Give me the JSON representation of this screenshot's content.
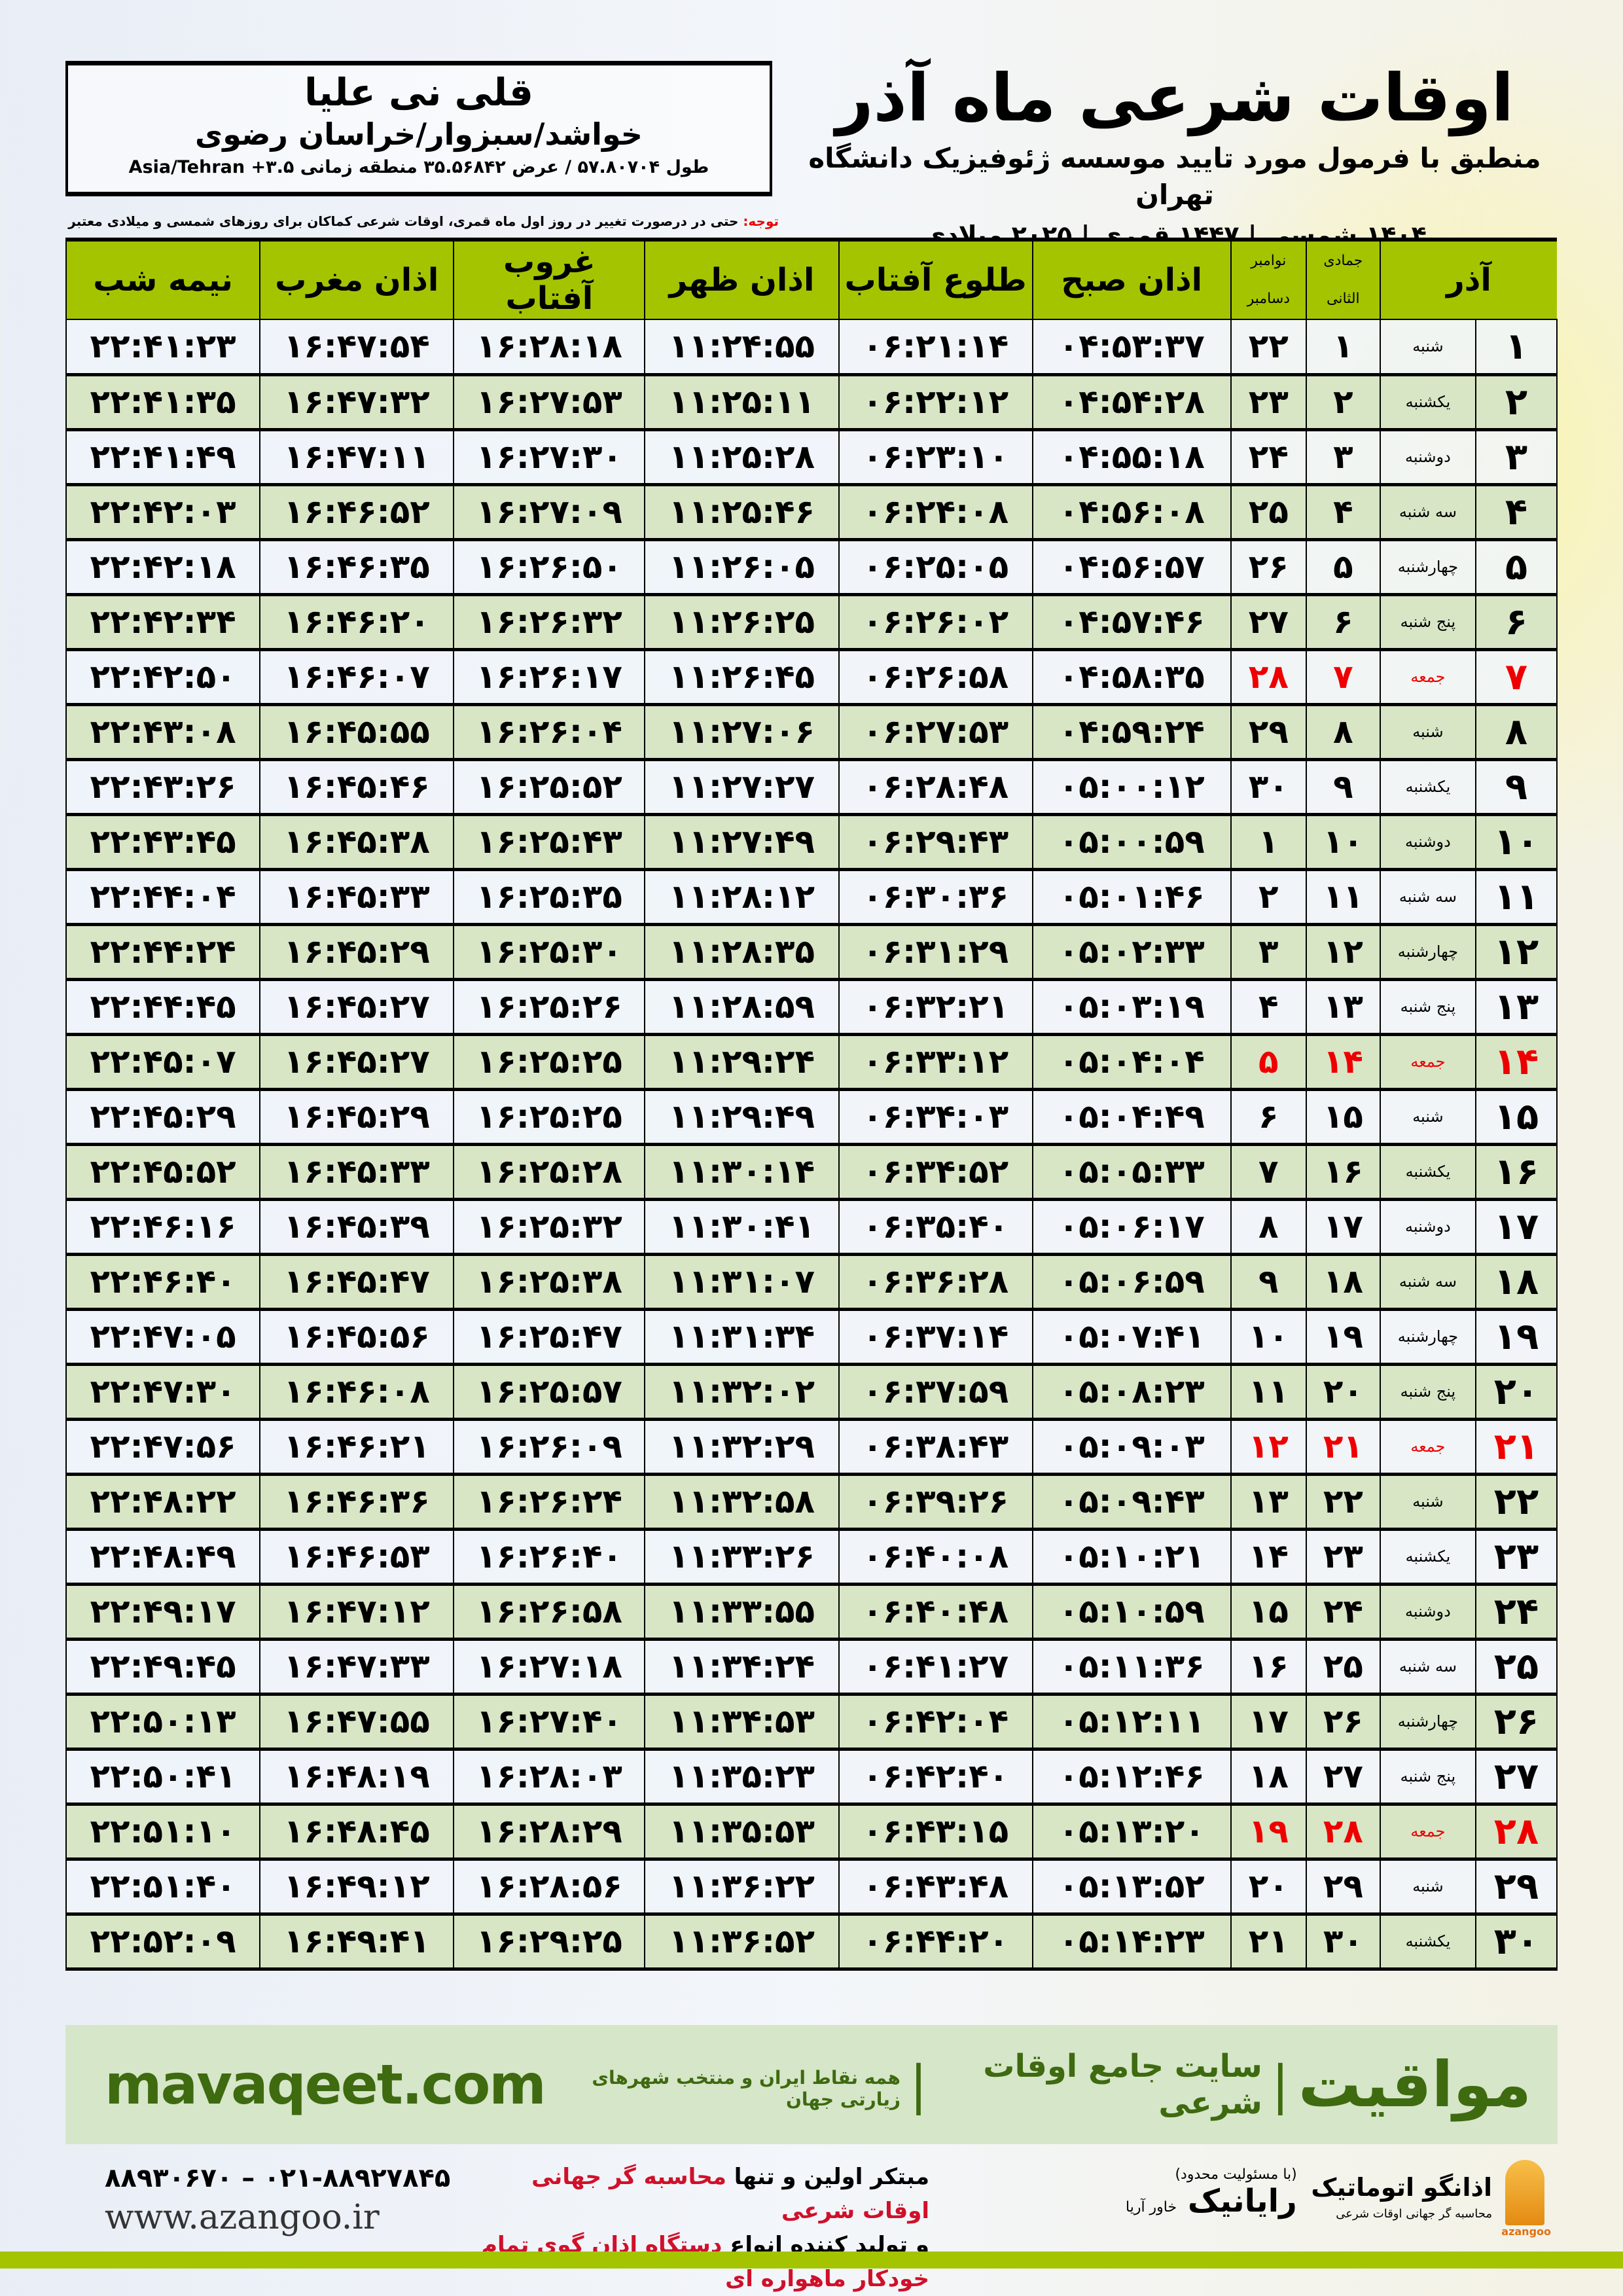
{
  "location": {
    "city": "قلی نی علیا",
    "region": "خواشد/سبزوار/خراسان رضوی",
    "coords": "طول ۵۷.۸۰۷۰۴ / عرض ۳۵.۵۶۸۴۲ منطقه زمانی ۳.۵+ Asia/Tehran"
  },
  "title": {
    "main": "اوقات شرعی ماه آذر",
    "subtitle": "منطبق با فرمول مورد تایید موسسه ژئوفیزیک دانشگاه تهران",
    "years": "۱۴۰۴ شمسی | ۱۴۴۷ قمری | ۲۰۲۵ میلادی"
  },
  "note": {
    "label": "توجه:",
    "text": " حتی در درصورت تغییر در روز اول ماه قمری، اوقات شرعی کماکان برای روزهای شمسی و میلادی معتبر است."
  },
  "colors": {
    "header": "#a5c400",
    "row_alt": "#d8e6c6",
    "friday": "#e00000",
    "brand": "#3e6a10"
  },
  "table": {
    "headers": {
      "month": "آذر",
      "hijri": "جمادی الثانی",
      "greg_top": "نوامبر",
      "greg_bottom": "دسامبر",
      "sobh": "اذان صبح",
      "tolu": "طلوع آفتاب",
      "zohr": "اذان ظهر",
      "ghorub": "غروب آفتاب",
      "maghrib": "اذان مغرب",
      "nimeh": "نیمه شب"
    },
    "rows": [
      [
        "۱",
        "شنبه",
        "۱",
        "۲۲",
        "۰۴:۵۳:۳۷",
        "۰۶:۲۱:۱۴",
        "۱۱:۲۴:۵۵",
        "۱۶:۲۸:۱۸",
        "۱۶:۴۷:۵۴",
        "۲۲:۴۱:۲۳"
      ],
      [
        "۲",
        "یکشنبه",
        "۲",
        "۲۳",
        "۰۴:۵۴:۲۸",
        "۰۶:۲۲:۱۲",
        "۱۱:۲۵:۱۱",
        "۱۶:۲۷:۵۳",
        "۱۶:۴۷:۳۲",
        "۲۲:۴۱:۳۵"
      ],
      [
        "۳",
        "دوشنبه",
        "۳",
        "۲۴",
        "۰۴:۵۵:۱۸",
        "۰۶:۲۳:۱۰",
        "۱۱:۲۵:۲۸",
        "۱۶:۲۷:۳۰",
        "۱۶:۴۷:۱۱",
        "۲۲:۴۱:۴۹"
      ],
      [
        "۴",
        "سه شنبه",
        "۴",
        "۲۵",
        "۰۴:۵۶:۰۸",
        "۰۶:۲۴:۰۸",
        "۱۱:۲۵:۴۶",
        "۱۶:۲۷:۰۹",
        "۱۶:۴۶:۵۲",
        "۲۲:۴۲:۰۳"
      ],
      [
        "۵",
        "چهارشنبه",
        "۵",
        "۲۶",
        "۰۴:۵۶:۵۷",
        "۰۶:۲۵:۰۵",
        "۱۱:۲۶:۰۵",
        "۱۶:۲۶:۵۰",
        "۱۶:۴۶:۳۵",
        "۲۲:۴۲:۱۸"
      ],
      [
        "۶",
        "پنج شنبه",
        "۶",
        "۲۷",
        "۰۴:۵۷:۴۶",
        "۰۶:۲۶:۰۲",
        "۱۱:۲۶:۲۵",
        "۱۶:۲۶:۳۲",
        "۱۶:۴۶:۲۰",
        "۲۲:۴۲:۳۴"
      ],
      [
        "۷",
        "جمعه",
        "۷",
        "۲۸",
        "۰۴:۵۸:۳۵",
        "۰۶:۲۶:۵۸",
        "۱۱:۲۶:۴۵",
        "۱۶:۲۶:۱۷",
        "۱۶:۴۶:۰۷",
        "۲۲:۴۲:۵۰"
      ],
      [
        "۸",
        "شنبه",
        "۸",
        "۲۹",
        "۰۴:۵۹:۲۴",
        "۰۶:۲۷:۵۳",
        "۱۱:۲۷:۰۶",
        "۱۶:۲۶:۰۴",
        "۱۶:۴۵:۵۵",
        "۲۲:۴۳:۰۸"
      ],
      [
        "۹",
        "یکشنبه",
        "۹",
        "۳۰",
        "۰۵:۰۰:۱۲",
        "۰۶:۲۸:۴۸",
        "۱۱:۲۷:۲۷",
        "۱۶:۲۵:۵۲",
        "۱۶:۴۵:۴۶",
        "۲۲:۴۳:۲۶"
      ],
      [
        "۱۰",
        "دوشنبه",
        "۱۰",
        "۱",
        "۰۵:۰۰:۵۹",
        "۰۶:۲۹:۴۳",
        "۱۱:۲۷:۴۹",
        "۱۶:۲۵:۴۳",
        "۱۶:۴۵:۳۸",
        "۲۲:۴۳:۴۵"
      ],
      [
        "۱۱",
        "سه شنبه",
        "۱۱",
        "۲",
        "۰۵:۰۱:۴۶",
        "۰۶:۳۰:۳۶",
        "۱۱:۲۸:۱۲",
        "۱۶:۲۵:۳۵",
        "۱۶:۴۵:۳۳",
        "۲۲:۴۴:۰۴"
      ],
      [
        "۱۲",
        "چهارشنبه",
        "۱۲",
        "۳",
        "۰۵:۰۲:۳۳",
        "۰۶:۳۱:۲۹",
        "۱۱:۲۸:۳۵",
        "۱۶:۲۵:۳۰",
        "۱۶:۴۵:۲۹",
        "۲۲:۴۴:۲۴"
      ],
      [
        "۱۳",
        "پنج شنبه",
        "۱۳",
        "۴",
        "۰۵:۰۳:۱۹",
        "۰۶:۳۲:۲۱",
        "۱۱:۲۸:۵۹",
        "۱۶:۲۵:۲۶",
        "۱۶:۴۵:۲۷",
        "۲۲:۴۴:۴۵"
      ],
      [
        "۱۴",
        "جمعه",
        "۱۴",
        "۵",
        "۰۵:۰۴:۰۴",
        "۰۶:۳۳:۱۲",
        "۱۱:۲۹:۲۴",
        "۱۶:۲۵:۲۵",
        "۱۶:۴۵:۲۷",
        "۲۲:۴۵:۰۷"
      ],
      [
        "۱۵",
        "شنبه",
        "۱۵",
        "۶",
        "۰۵:۰۴:۴۹",
        "۰۶:۳۴:۰۳",
        "۱۱:۲۹:۴۹",
        "۱۶:۲۵:۲۵",
        "۱۶:۴۵:۲۹",
        "۲۲:۴۵:۲۹"
      ],
      [
        "۱۶",
        "یکشنبه",
        "۱۶",
        "۷",
        "۰۵:۰۵:۳۳",
        "۰۶:۳۴:۵۲",
        "۱۱:۳۰:۱۴",
        "۱۶:۲۵:۲۸",
        "۱۶:۴۵:۳۳",
        "۲۲:۴۵:۵۲"
      ],
      [
        "۱۷",
        "دوشنبه",
        "۱۷",
        "۸",
        "۰۵:۰۶:۱۷",
        "۰۶:۳۵:۴۰",
        "۱۱:۳۰:۴۱",
        "۱۶:۲۵:۳۲",
        "۱۶:۴۵:۳۹",
        "۲۲:۴۶:۱۶"
      ],
      [
        "۱۸",
        "سه شنبه",
        "۱۸",
        "۹",
        "۰۵:۰۶:۵۹",
        "۰۶:۳۶:۲۸",
        "۱۱:۳۱:۰۷",
        "۱۶:۲۵:۳۸",
        "۱۶:۴۵:۴۷",
        "۲۲:۴۶:۴۰"
      ],
      [
        "۱۹",
        "چهارشنبه",
        "۱۹",
        "۱۰",
        "۰۵:۰۷:۴۱",
        "۰۶:۳۷:۱۴",
        "۱۱:۳۱:۳۴",
        "۱۶:۲۵:۴۷",
        "۱۶:۴۵:۵۶",
        "۲۲:۴۷:۰۵"
      ],
      [
        "۲۰",
        "پنج شنبه",
        "۲۰",
        "۱۱",
        "۰۵:۰۸:۲۳",
        "۰۶:۳۷:۵۹",
        "۱۱:۳۲:۰۲",
        "۱۶:۲۵:۵۷",
        "۱۶:۴۶:۰۸",
        "۲۲:۴۷:۳۰"
      ],
      [
        "۲۱",
        "جمعه",
        "۲۱",
        "۱۲",
        "۰۵:۰۹:۰۳",
        "۰۶:۳۸:۴۳",
        "۱۱:۳۲:۲۹",
        "۱۶:۲۶:۰۹",
        "۱۶:۴۶:۲۱",
        "۲۲:۴۷:۵۶"
      ],
      [
        "۲۲",
        "شنبه",
        "۲۲",
        "۱۳",
        "۰۵:۰۹:۴۳",
        "۰۶:۳۹:۲۶",
        "۱۱:۳۲:۵۸",
        "۱۶:۲۶:۲۴",
        "۱۶:۴۶:۳۶",
        "۲۲:۴۸:۲۲"
      ],
      [
        "۲۳",
        "یکشنبه",
        "۲۳",
        "۱۴",
        "۰۵:۱۰:۲۱",
        "۰۶:۴۰:۰۸",
        "۱۱:۳۳:۲۶",
        "۱۶:۲۶:۴۰",
        "۱۶:۴۶:۵۳",
        "۲۲:۴۸:۴۹"
      ],
      [
        "۲۴",
        "دوشنبه",
        "۲۴",
        "۱۵",
        "۰۵:۱۰:۵۹",
        "۰۶:۴۰:۴۸",
        "۱۱:۳۳:۵۵",
        "۱۶:۲۶:۵۸",
        "۱۶:۴۷:۱۲",
        "۲۲:۴۹:۱۷"
      ],
      [
        "۲۵",
        "سه شنبه",
        "۲۵",
        "۱۶",
        "۰۵:۱۱:۳۶",
        "۰۶:۴۱:۲۷",
        "۱۱:۳۴:۲۴",
        "۱۶:۲۷:۱۸",
        "۱۶:۴۷:۳۳",
        "۲۲:۴۹:۴۵"
      ],
      [
        "۲۶",
        "چهارشنبه",
        "۲۶",
        "۱۷",
        "۰۵:۱۲:۱۱",
        "۰۶:۴۲:۰۴",
        "۱۱:۳۴:۵۳",
        "۱۶:۲۷:۴۰",
        "۱۶:۴۷:۵۵",
        "۲۲:۵۰:۱۳"
      ],
      [
        "۲۷",
        "پنج شنبه",
        "۲۷",
        "۱۸",
        "۰۵:۱۲:۴۶",
        "۰۶:۴۲:۴۰",
        "۱۱:۳۵:۲۳",
        "۱۶:۲۸:۰۳",
        "۱۶:۴۸:۱۹",
        "۲۲:۵۰:۴۱"
      ],
      [
        "۲۸",
        "جمعه",
        "۲۸",
        "۱۹",
        "۰۵:۱۳:۲۰",
        "۰۶:۴۳:۱۵",
        "۱۱:۳۵:۵۳",
        "۱۶:۲۸:۲۹",
        "۱۶:۴۸:۴۵",
        "۲۲:۵۱:۱۰"
      ],
      [
        "۲۹",
        "شنبه",
        "۲۹",
        "۲۰",
        "۰۵:۱۳:۵۲",
        "۰۶:۴۳:۴۸",
        "۱۱:۳۶:۲۲",
        "۱۶:۲۸:۵۶",
        "۱۶:۴۹:۱۲",
        "۲۲:۵۱:۴۰"
      ],
      [
        "۳۰",
        "یکشنبه",
        "۳۰",
        "۲۱",
        "۰۵:۱۴:۲۳",
        "۰۶:۴۴:۲۰",
        "۱۱:۳۶:۵۲",
        "۱۶:۲۹:۲۵",
        "۱۶:۴۹:۴۱",
        "۲۲:۵۲:۰۹"
      ]
    ]
  },
  "banner": {
    "brand": "مواقیت",
    "separator": "|",
    "slogan": "سایت جامع اوقات شرعی",
    "separator2": "|",
    "sub": "همه نقاط ایران و منتخب شهرهای زیارتی جهان",
    "url": "mavaqeet.com"
  },
  "footer": {
    "phone": "۰۲۱-۸۸۹۲۷۸۴۵ – ۸۸۹۳۰۶۷۰",
    "web": "www.azangoo.ir",
    "line1_a": "مبتکر اولین و تنها ",
    "line1_b": "محاسبه گر جهانی اوقات شرعی",
    "line2_a": "و تولید کننده انواع ",
    "line2_b": "دستگاه اذان گوی تمام خودکار ماهواره ای",
    "rayanik": "رایانیک",
    "rayanik_sub": "خاور آریا",
    "rayanik_note": "(با مسئولیت محدود)",
    "azangoo": "اذانگو اتوماتیک",
    "azangoo_sub": "محاسبه گر جهانی اوقات شرعی",
    "azangoo_en": "azangoo"
  }
}
